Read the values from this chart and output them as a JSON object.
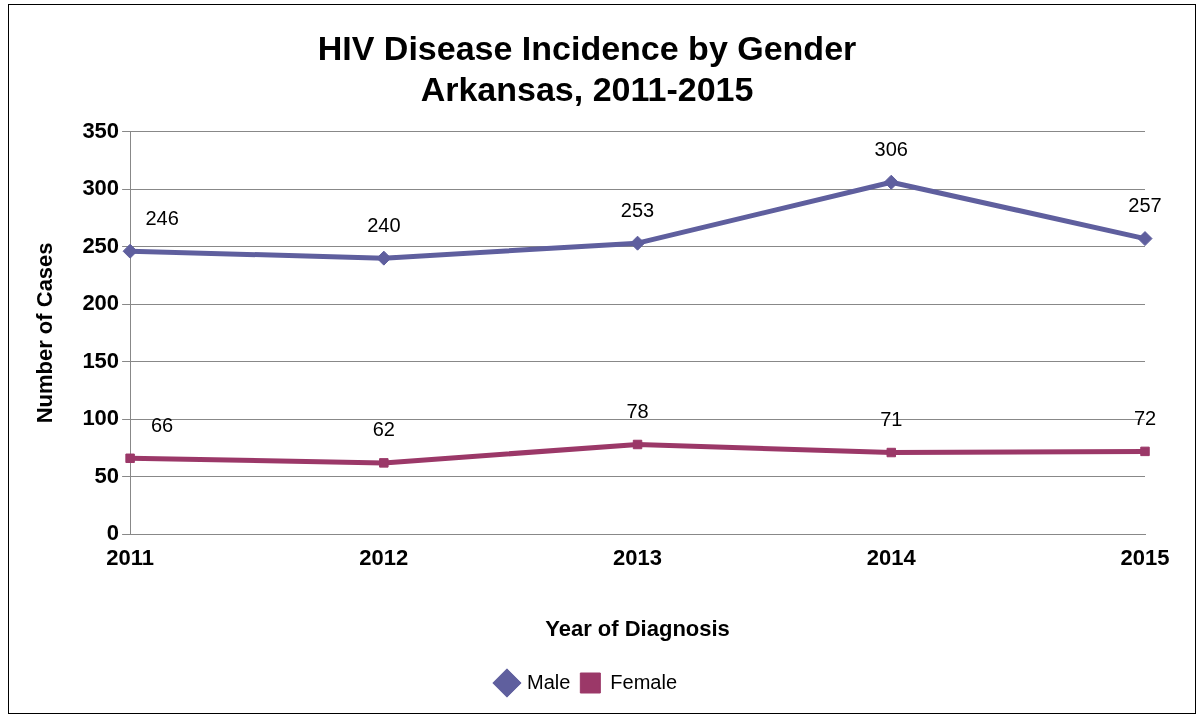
{
  "chart_data": {
    "type": "line",
    "title": "HIV Disease Incidence by Gender\nArkansas, 2011-2015",
    "xlabel": "Year of Diagnosis",
    "ylabel": "Number of Cases",
    "categories": [
      "2011",
      "2012",
      "2013",
      "2014",
      "2015"
    ],
    "series": [
      {
        "name": "Male",
        "color": "#5f5f9e",
        "marker": "diamond",
        "values": [
          246,
          240,
          253,
          306,
          257
        ]
      },
      {
        "name": "Female",
        "color": "#9b3868",
        "marker": "square",
        "values": [
          66,
          62,
          78,
          71,
          72
        ]
      }
    ],
    "ylim": [
      0,
      350
    ],
    "yticks": [
      0,
      50,
      100,
      150,
      200,
      250,
      300,
      350
    ],
    "grid": "y",
    "legend": "bottom",
    "data_labels": true,
    "line_style": "solid"
  }
}
